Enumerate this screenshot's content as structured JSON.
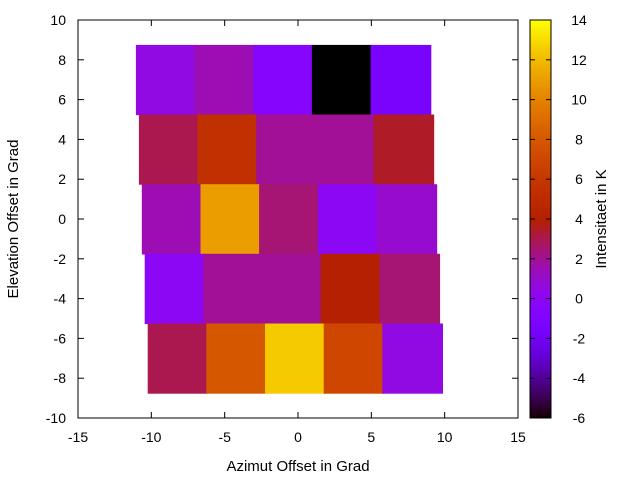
{
  "chart_data": {
    "type": "heatmap",
    "title": "",
    "xlabel": "Azimut Offset in Grad",
    "ylabel": "Elevation Offset in Grad",
    "colorbar_label": "Intensitaet in K",
    "xlim": [
      -15,
      15
    ],
    "ylim": [
      -10,
      10
    ],
    "xticks": [
      "-15",
      "-10",
      "-5",
      "0",
      "5",
      "10",
      "15"
    ],
    "yticks": [
      "-10",
      "-8",
      "-6",
      "-4",
      "-2",
      "0",
      "2",
      "4",
      "6",
      "8",
      "10"
    ],
    "colorbar_range": [
      -6,
      14
    ],
    "colorbar_ticks": [
      "-6",
      "-4",
      "-2",
      "0",
      "2",
      "4",
      "6",
      "8",
      "10",
      "12",
      "14"
    ],
    "colormap": "gnuplot-pm3d-rgbformulae-7-5-15",
    "cell_width": 4.1,
    "cell_height": 3.5,
    "rows": [
      {
        "y": 7,
        "x": [
          -9.0,
          -5.0,
          -1.0,
          3.0,
          7.0
        ],
        "values": [
          0.5,
          1.5,
          -0.5,
          -6.0,
          -1.5
        ]
      },
      {
        "y": 3.5,
        "x": [
          -8.8,
          -4.8,
          -0.8,
          3.2,
          7.2
        ],
        "values": [
          3.0,
          5.5,
          2.0,
          2.0,
          3.5
        ]
      },
      {
        "y": 0,
        "x": [
          -8.6,
          -4.6,
          -0.6,
          3.4,
          7.4
        ],
        "values": [
          1.5,
          11.0,
          2.5,
          0.0,
          1.0
        ]
      },
      {
        "y": -3.5,
        "x": [
          -8.4,
          -4.4,
          -0.4,
          3.6,
          7.6
        ],
        "values": [
          0.0,
          2.0,
          2.0,
          4.0,
          2.5
        ]
      },
      {
        "y": -7,
        "x": [
          -8.2,
          -4.2,
          -0.2,
          3.8,
          7.8
        ],
        "values": [
          3.0,
          8.0,
          12.5,
          7.0,
          0.5
        ]
      }
    ]
  }
}
